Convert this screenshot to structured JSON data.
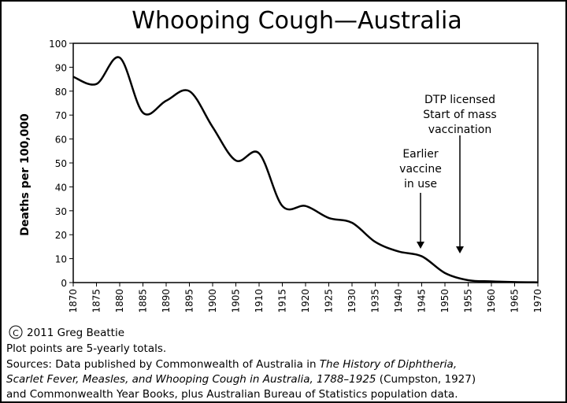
{
  "chart_data": {
    "type": "line",
    "title": "Whooping Cough—Australia",
    "y_label": "Deaths per 100,000",
    "x": [
      1870,
      1875,
      1880,
      1885,
      1890,
      1895,
      1900,
      1905,
      1910,
      1915,
      1920,
      1925,
      1930,
      1935,
      1940,
      1945,
      1950,
      1955,
      1960,
      1965,
      1970
    ],
    "series": [
      {
        "color": "#000000",
        "values": [
          86,
          83,
          94,
          71,
          76,
          80,
          65,
          51,
          54,
          32,
          32,
          27,
          25,
          17,
          13,
          11,
          4,
          1,
          0.5,
          0.2,
          0.1
        ]
      }
    ],
    "xlim": [
      1870,
      1970
    ],
    "xticks": [
      1870,
      1875,
      1880,
      1885,
      1890,
      1895,
      1900,
      1905,
      1910,
      1915,
      1920,
      1925,
      1930,
      1935,
      1940,
      1945,
      1950,
      1955,
      1960,
      1965,
      1970
    ],
    "ylim": [
      0,
      100
    ],
    "yticks": [
      0,
      10,
      20,
      30,
      40,
      50,
      60,
      70,
      80,
      90,
      100
    ],
    "annotations": [
      {
        "lines": [
          "Earlier",
          "vaccine",
          "in use"
        ]
      },
      {
        "lines": [
          "DTP licensed",
          "Start of mass",
          "vaccination"
        ]
      }
    ]
  },
  "footer": {
    "copyright_symbol": "C",
    "copyright": "2011 Greg Beattie",
    "note": "Plot points are 5-yearly totals.",
    "source_lines": [
      [
        {
          "text": "Sources: Data published by Commonwealth of Australia in "
        },
        {
          "text": "The History of Diphtheria,",
          "italic": true
        }
      ],
      [
        {
          "text": "Scarlet Fever, Measles, and Whooping Cough in Australia, 1788–1925",
          "italic": true
        },
        {
          "text": " (Cumpston, 1927)"
        }
      ],
      [
        {
          "text": "and Commonwealth Year Books, plus Australian Bureau of Statistics population data."
        }
      ]
    ]
  }
}
